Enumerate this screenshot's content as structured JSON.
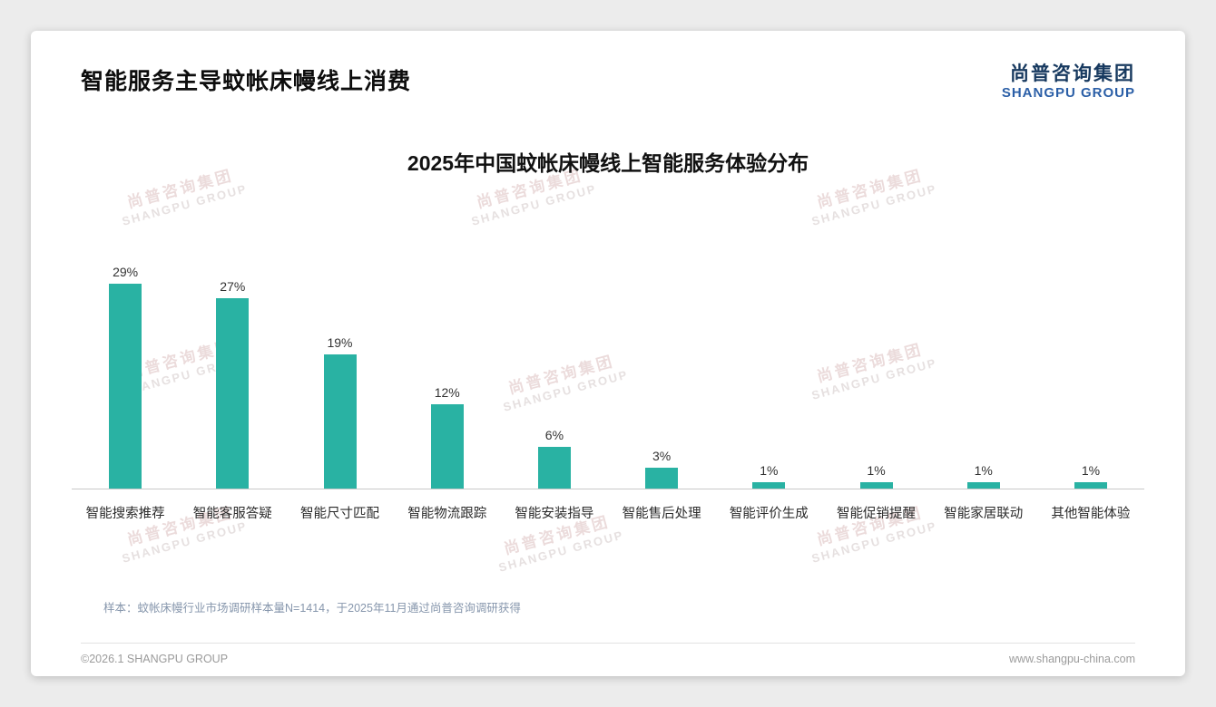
{
  "page": {
    "title": "智能服务主导蚊帐床幔线上消费",
    "logo": {
      "cn": "尚普咨询集团",
      "en": "SHANGPU GROUP"
    },
    "watermark": {
      "cn": "尚普咨询集团",
      "en": "SHANGPU GROUP"
    },
    "note": "样本：蚊帐床幔行业市场调研样本量N=1414，于2025年11月通过尚普咨询调研获得",
    "footer": {
      "copyright": "©2026.1 SHANGPU GROUP",
      "website": "www.shangpu-china.com"
    }
  },
  "chart_data": {
    "type": "bar",
    "title": "2025年中国蚊帐床幔线上智能服务体验分布",
    "categories": [
      "智能搜索推荐",
      "智能客服答疑",
      "智能尺寸匹配",
      "智能物流跟踪",
      "智能安装指导",
      "智能售后处理",
      "智能评价生成",
      "智能促销提醒",
      "智能家居联动",
      "其他智能体验"
    ],
    "values": [
      29,
      27,
      19,
      12,
      6,
      3,
      1,
      1,
      1,
      1
    ],
    "value_labels": [
      "29%",
      "27%",
      "19%",
      "12%",
      "6%",
      "3%",
      "1%",
      "1%",
      "1%",
      "1%"
    ],
    "bar_color": "#29b2a3",
    "xlabel": "",
    "ylabel": "",
    "ylim": [
      0,
      30
    ],
    "grid": false,
    "legend": "none"
  }
}
